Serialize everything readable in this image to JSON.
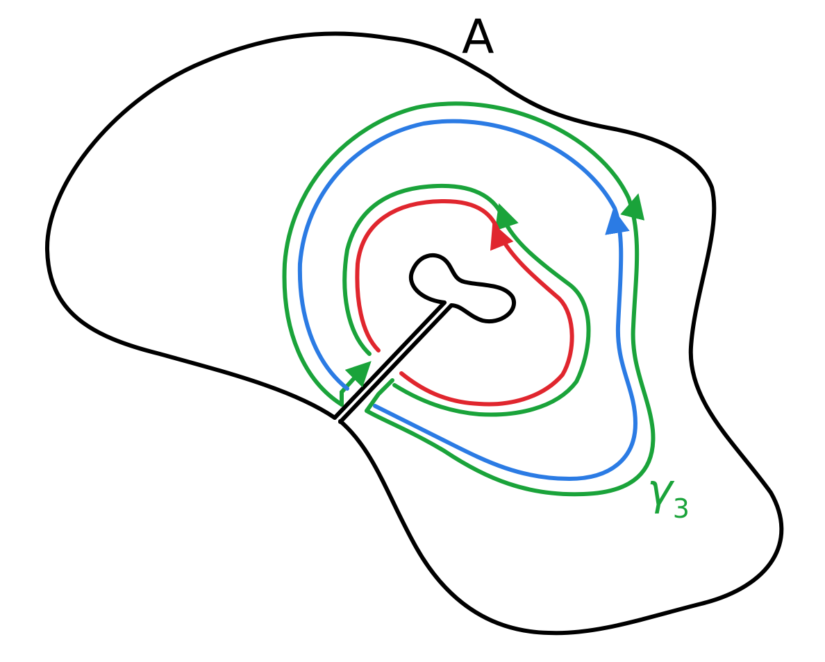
{
  "labels": {
    "region": "A",
    "curve_symbol": "γ",
    "curve_index": "3"
  },
  "colors": {
    "outline": "#000000",
    "outer_contour": "#1aa33a",
    "outer_loop": "#2b7be4",
    "inner_loop": "#e0262e"
  }
}
